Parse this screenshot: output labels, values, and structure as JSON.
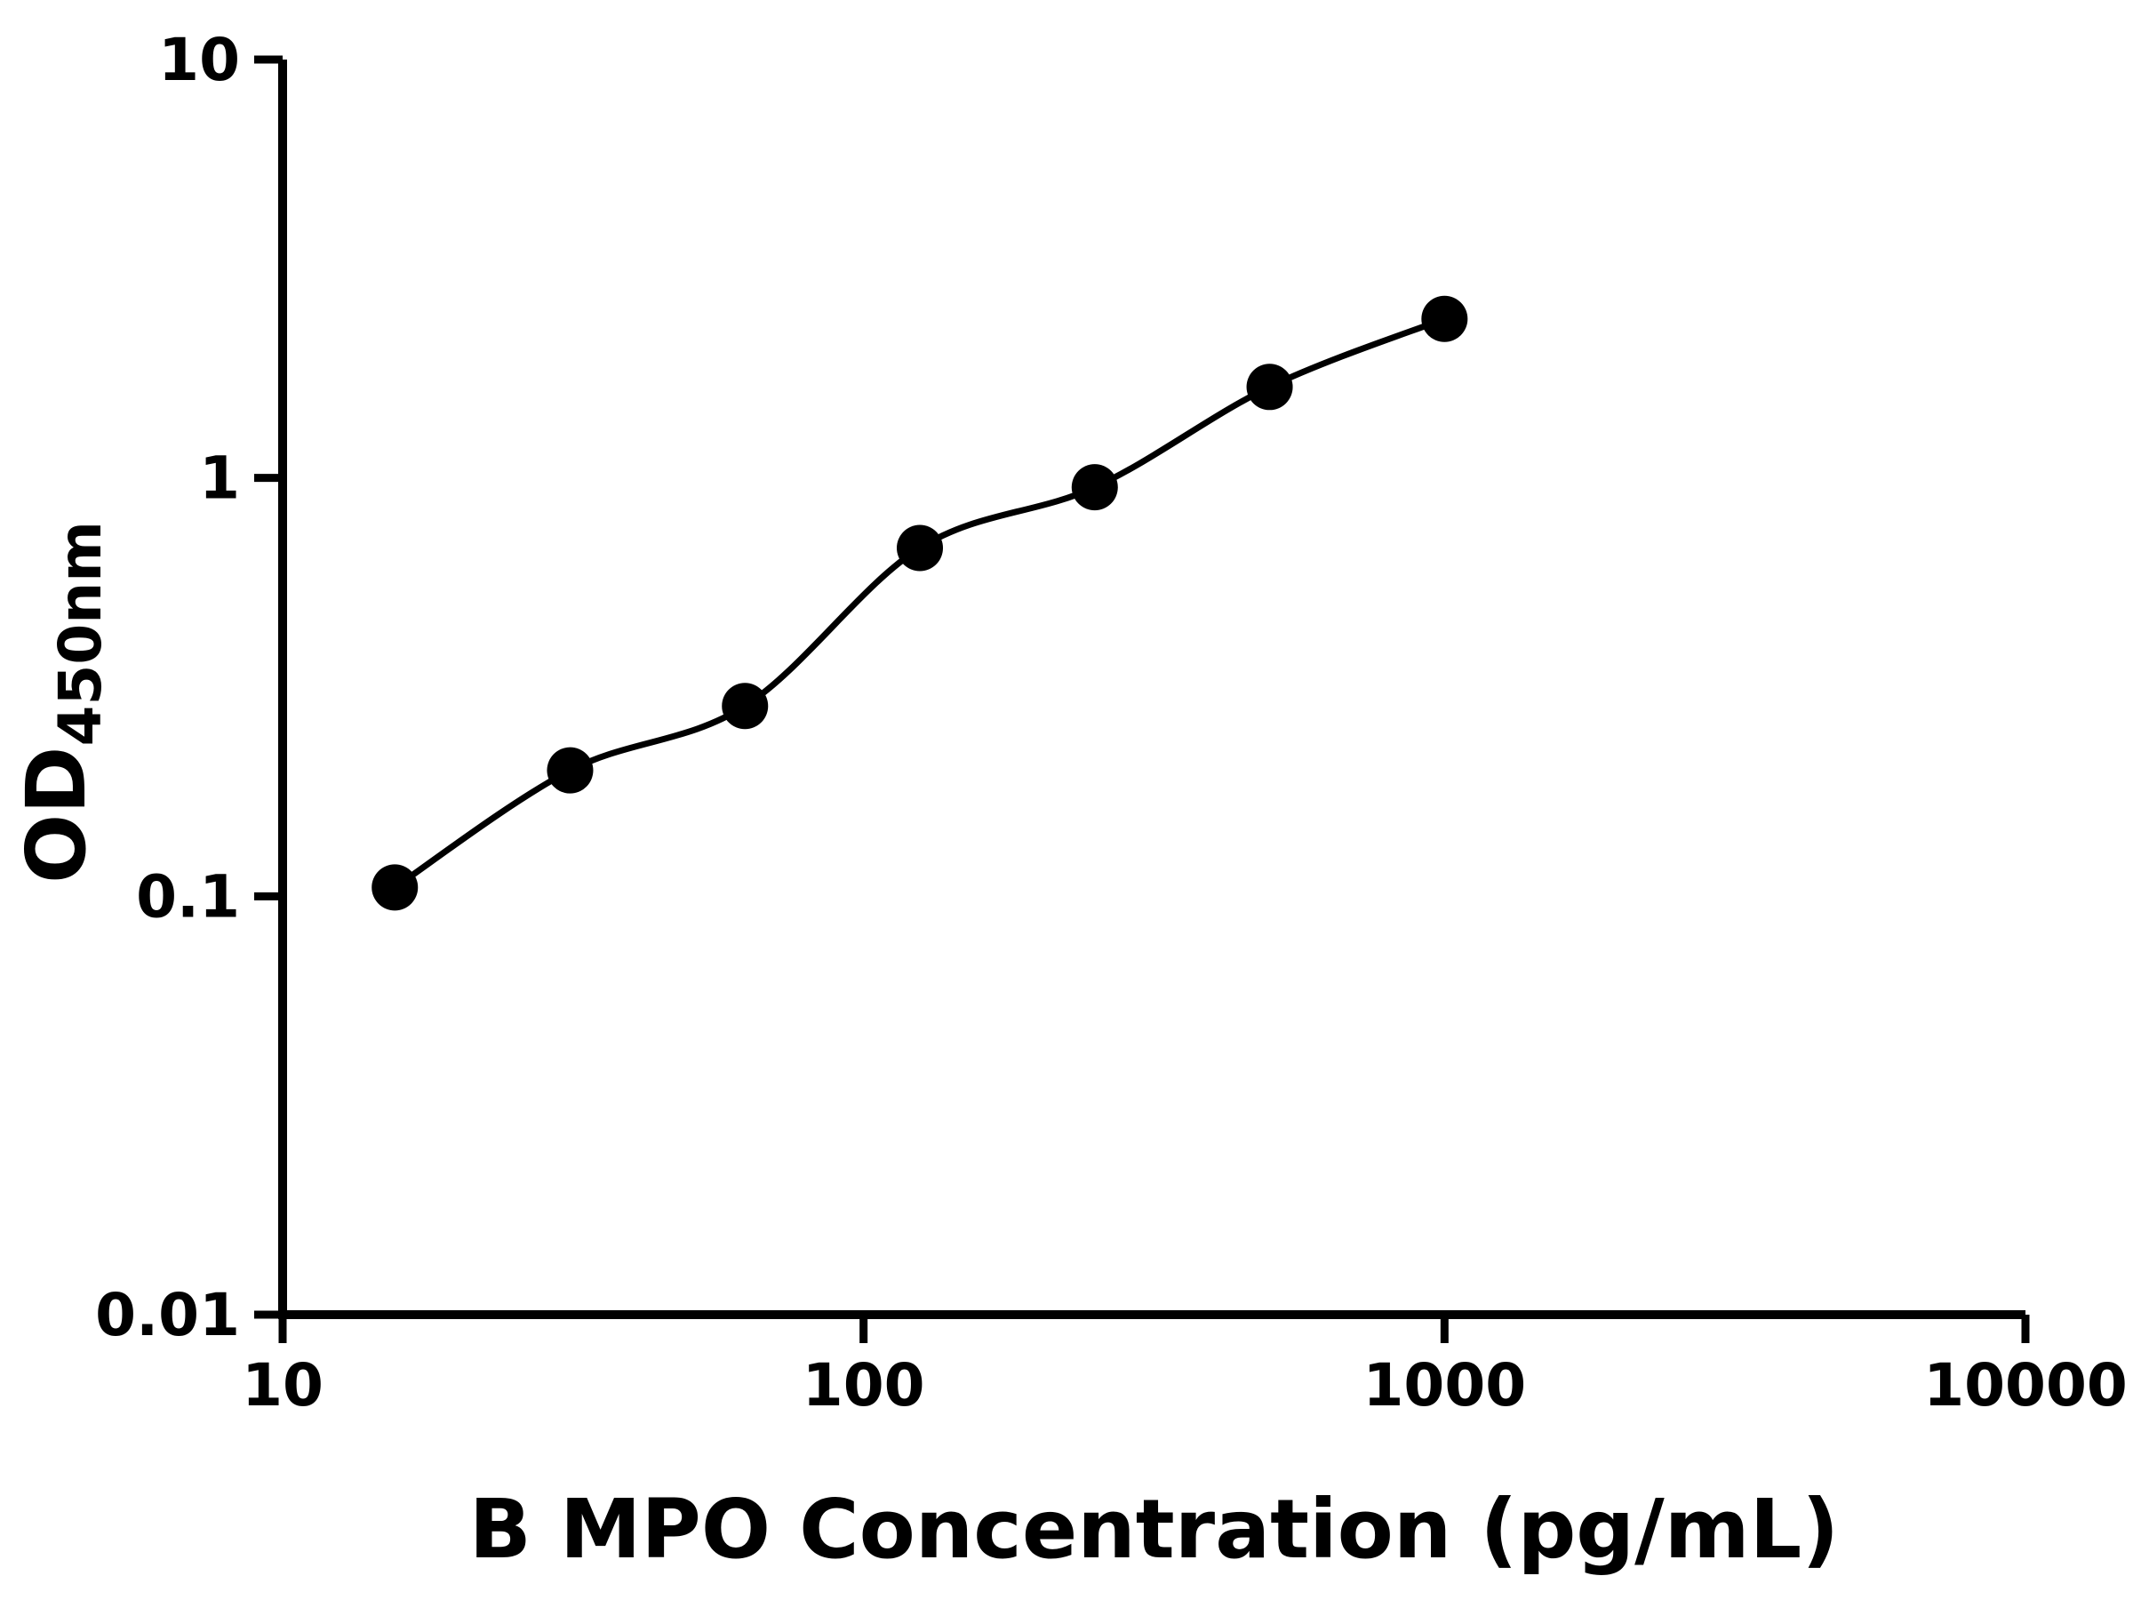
{
  "chart_data": {
    "type": "scatter",
    "title": "",
    "xlabel": "B MPO Concentration (pg/mL)",
    "ylabel": "OD450nm",
    "ylabel_main": "OD",
    "ylabel_sub": "450nm",
    "series": [
      {
        "name": "standard-curve",
        "x": [
          15.6,
          31.25,
          62.5,
          125,
          250,
          500,
          1000
        ],
        "y": [
          0.105,
          0.2,
          0.285,
          0.68,
          0.95,
          1.65,
          2.4
        ]
      }
    ],
    "x_scale": "log",
    "y_scale": "log",
    "xlim": [
      10,
      10000
    ],
    "ylim": [
      0.01,
      10
    ],
    "x_ticks": [
      10,
      100,
      1000,
      10000
    ],
    "x_tick_labels": [
      "10",
      "100",
      "1000",
      "10000"
    ],
    "y_ticks": [
      0.01,
      0.1,
      1,
      10
    ],
    "y_tick_labels": [
      "0.01",
      "0.1",
      "1",
      "10"
    ],
    "grid": false,
    "legend": false,
    "marker": "circle",
    "marker_color": "#000000",
    "line_color": "#000000",
    "axis_color": "#000000",
    "background_color": "#ffffff"
  }
}
